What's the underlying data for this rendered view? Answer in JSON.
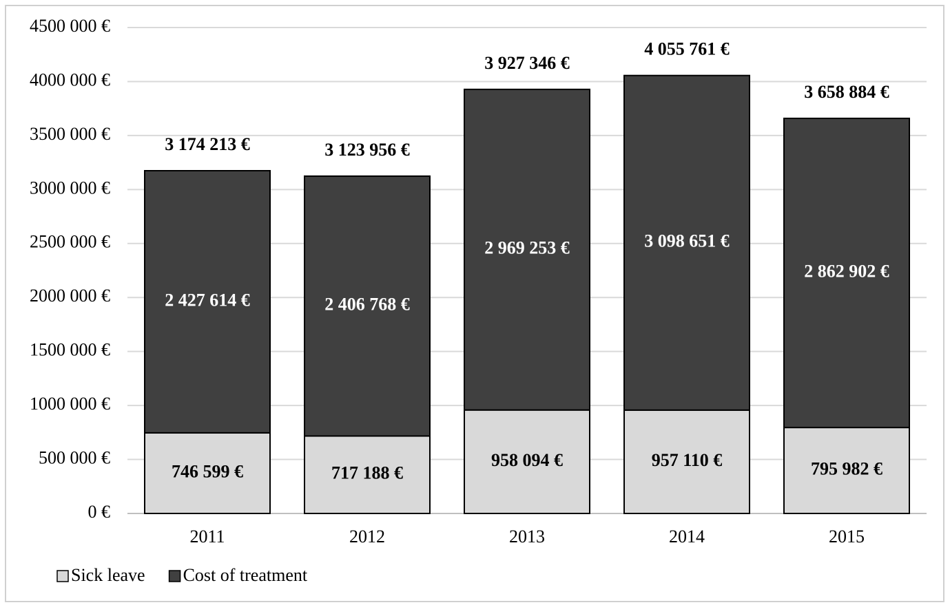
{
  "chart_data": {
    "type": "stacked_bar",
    "categories": [
      "2011",
      "2012",
      "2013",
      "2014",
      "2015"
    ],
    "series": [
      {
        "name": "Sick leave",
        "color": "#d9d9d9",
        "label_color": "#000000",
        "values": [
          746599,
          717188,
          958094,
          957110,
          795982
        ],
        "value_labels": [
          "746 599 €",
          "717 188 €",
          "958 094 €",
          "957 110 €",
          "795 982 €"
        ]
      },
      {
        "name": "Cost of treatment",
        "color": "#404040",
        "label_color": "#ffffff",
        "values": [
          2427614,
          2406768,
          2969253,
          3098651,
          2862902
        ],
        "value_labels": [
          "2 427 614 €",
          "2 406 768 €",
          "2 969 253 €",
          "3 098 651 €",
          "2 862 902 €"
        ]
      }
    ],
    "totals": {
      "values": [
        3174213,
        3123956,
        3927346,
        4055761,
        3658884
      ],
      "value_labels": [
        "3 174 213 €",
        "3 123 956 €",
        "3 927 346 €",
        "4 055 761 €",
        "3 658 884 €"
      ]
    },
    "ylim": [
      0,
      4500000
    ],
    "yticks": [
      {
        "value": 0,
        "label": "0 €"
      },
      {
        "value": 500000,
        "label": "500 000 €"
      },
      {
        "value": 1000000,
        "label": "1000 000 €"
      },
      {
        "value": 1500000,
        "label": "1500 000 €"
      },
      {
        "value": 2000000,
        "label": "2000 000 €"
      },
      {
        "value": 2500000,
        "label": "2500 000 €"
      },
      {
        "value": 3000000,
        "label": "3000 000 €"
      },
      {
        "value": 3500000,
        "label": "3500 000 €"
      },
      {
        "value": 4000000,
        "label": "4000 000 €"
      },
      {
        "value": 4500000,
        "label": "4500 000 €"
      }
    ],
    "grid": true,
    "legend": "bottom-left"
  }
}
